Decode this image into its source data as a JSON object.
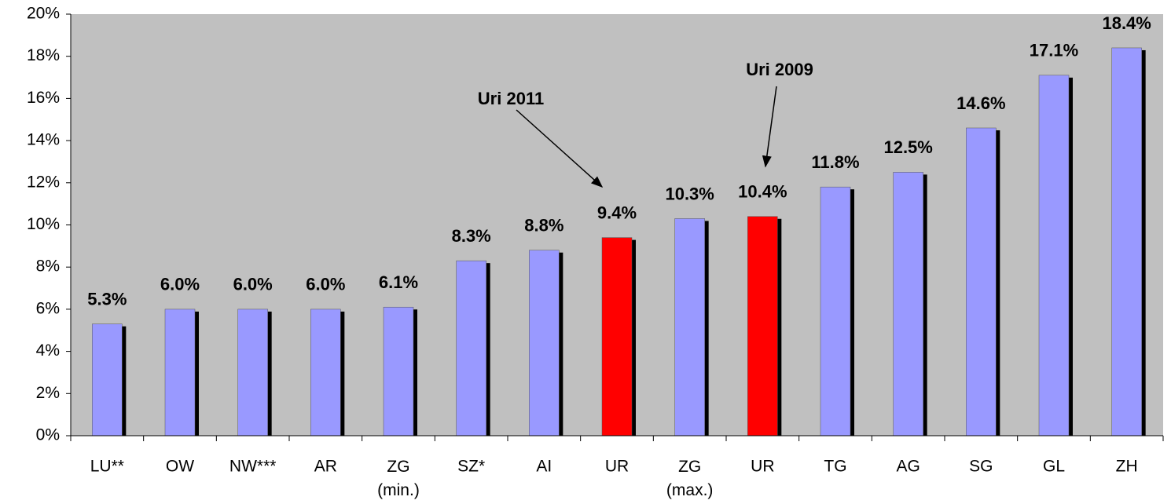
{
  "chart_data": {
    "type": "bar",
    "categories": [
      "LU**",
      "OW",
      "NW***",
      "AR",
      "ZG (min.)",
      "SZ*",
      "AI",
      "UR",
      "ZG (max.)",
      "UR",
      "TG",
      "AG",
      "SG",
      "GL",
      "ZH"
    ],
    "values": [
      5.3,
      6.0,
      6.0,
      6.0,
      6.1,
      8.3,
      8.8,
      9.4,
      10.3,
      10.4,
      11.8,
      12.5,
      14.6,
      17.1,
      18.4
    ],
    "value_labels": [
      "5.3%",
      "6.0%",
      "6.0%",
      "6.0%",
      "6.1%",
      "8.3%",
      "8.8%",
      "9.4%",
      "10.3%",
      "10.4%",
      "11.8%",
      "12.5%",
      "14.6%",
      "17.1%",
      "18.4%"
    ],
    "colors": [
      "#9999ff",
      "#9999ff",
      "#9999ff",
      "#9999ff",
      "#9999ff",
      "#9999ff",
      "#9999ff",
      "#ff0000",
      "#9999ff",
      "#ff0000",
      "#9999ff",
      "#9999ff",
      "#9999ff",
      "#9999ff",
      "#9999ff"
    ],
    "ylim": [
      0,
      20
    ],
    "yticks": [
      {
        "value": 0,
        "label": "0%"
      },
      {
        "value": 2,
        "label": "2%"
      },
      {
        "value": 4,
        "label": "4%"
      },
      {
        "value": 6,
        "label": "6%"
      },
      {
        "value": 8,
        "label": "8%"
      },
      {
        "value": 10,
        "label": "10%"
      },
      {
        "value": 12,
        "label": "12%"
      },
      {
        "value": 14,
        "label": "14%"
      },
      {
        "value": 16,
        "label": "16%"
      },
      {
        "value": 18,
        "label": "18%"
      },
      {
        "value": 20,
        "label": "20%"
      }
    ],
    "annotations": [
      "Uri 2011",
      "Uri 2009"
    ]
  }
}
